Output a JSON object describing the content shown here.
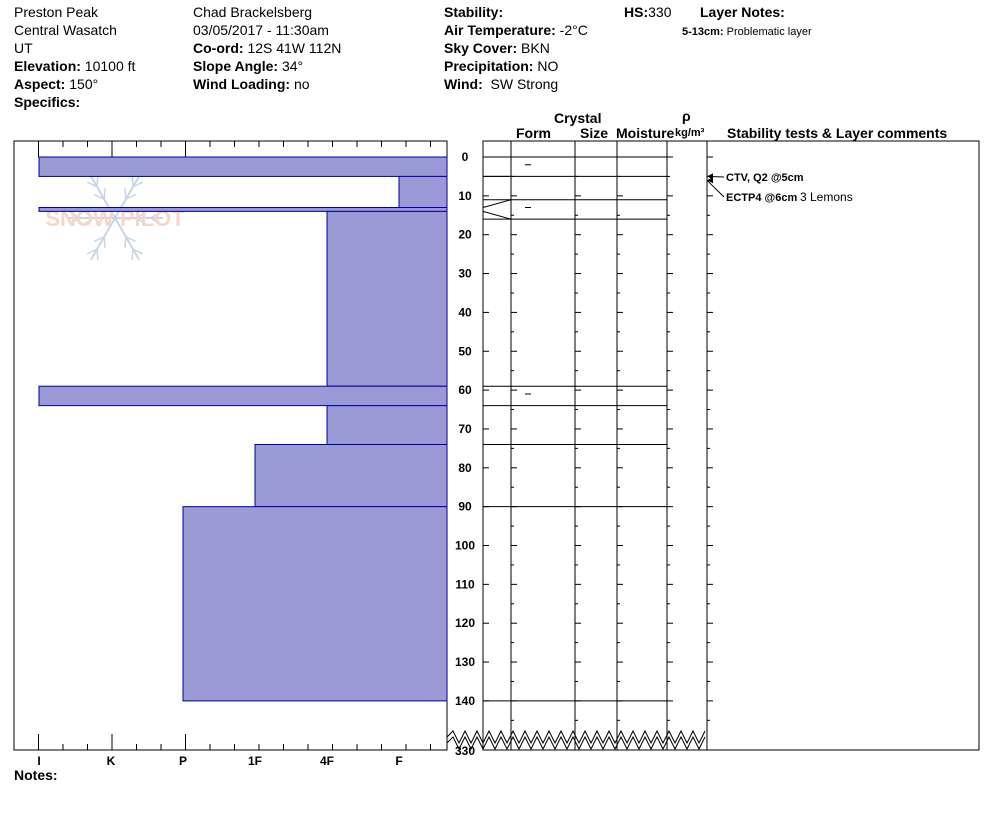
{
  "header": {
    "location": "Preston Peak",
    "range": "Central Wasatch",
    "state": "UT",
    "elevation_label": "Elevation:",
    "elevation_value": "10100 ft",
    "aspect_label": "Aspect:",
    "aspect_value": "150°",
    "specifics_label": "Specifics:",
    "observer": "Chad Brackelsberg",
    "datetime": "03/05/2017 - 11:30am",
    "coord_label": "Co-ord:",
    "coord_value": "12S 41W 112N",
    "slope_label": "Slope Angle:",
    "slope_value": "34°",
    "windload_label": "Wind Loading:",
    "windload_value": "no",
    "stability_label": "Stability:",
    "airtemp_label": "Air Temperature:",
    "airtemp_value": "-2°C",
    "sky_label": "Sky Cover:",
    "sky_value": "BKN",
    "precip_label": "Precipitation:",
    "precip_value": "NO",
    "wind_label": "Wind:",
    "wind_value": "SW Strong",
    "hs_label": "HS:",
    "hs_value": "330",
    "layer_notes_label": "Layer Notes:",
    "layer_note_depth": "5-13cm:",
    "layer_note_text": "Problematic layer"
  },
  "columns": {
    "crystal": "Crystal",
    "form": "Form",
    "size": "Size",
    "moisture": "Moisture",
    "rho": "ρ",
    "density_unit": "kg/m³",
    "stability_comments": "Stability tests & Layer comments"
  },
  "footer": {
    "notes_label": "Notes:"
  },
  "watermark": "SNOW PILOT",
  "chart_data": {
    "type": "bar",
    "y_ticks": [
      "0",
      "10",
      "20",
      "30",
      "40",
      "50",
      "60",
      "70",
      "80",
      "90",
      "100",
      "110",
      "120",
      "130",
      "140"
    ],
    "y_bottom_label": "330",
    "hardness_labels": [
      "I",
      "K",
      "P",
      "1F",
      "4F",
      "F"
    ],
    "layers": [
      {
        "top": 0,
        "bottom": 5,
        "hardness": "I"
      },
      {
        "top": 5,
        "bottom": 13,
        "hardness": "F"
      },
      {
        "top": 13,
        "bottom": 14,
        "hardness": "I"
      },
      {
        "top": 14,
        "bottom": 59,
        "hardness": "4F"
      },
      {
        "top": 59,
        "bottom": 64,
        "hardness": "I"
      },
      {
        "top": 64,
        "bottom": 74,
        "hardness": "4F"
      },
      {
        "top": 74,
        "bottom": 90,
        "hardness": "1F"
      },
      {
        "top": 90,
        "bottom": 140,
        "hardness": "P"
      }
    ],
    "layer_boundaries": [
      0,
      5,
      11,
      16,
      59,
      64,
      74,
      90,
      140
    ],
    "form_marks": [
      {
        "depth": 2
      },
      {
        "depth": 13
      },
      {
        "depth": 61
      }
    ],
    "tests": [
      {
        "label": "CTV, Q2 @5cm",
        "depth": 5,
        "comment": ""
      },
      {
        "label": "ECTP4 @6cm",
        "depth": 6,
        "comment": "3 Lemons"
      }
    ],
    "colors": {
      "bar_fill": "#9999d6",
      "bar_stroke": "#0000a0"
    }
  }
}
